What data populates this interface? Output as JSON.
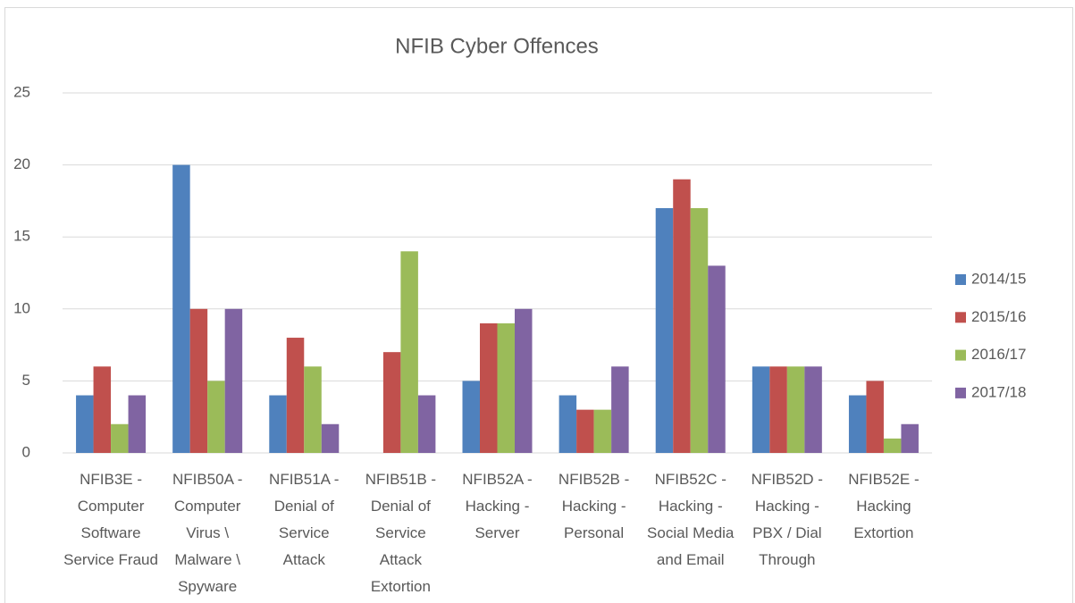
{
  "chart_data": {
    "type": "bar",
    "title": "NFIB Cyber Offences",
    "categories": [
      "NFIB3E - Computer Software Service Fraud",
      "NFIB50A - Computer Virus \\ Malware \\ Spyware",
      "NFIB51A - Denial of Service Attack",
      "NFIB51B - Denial of Service Attack Extortion",
      "NFIB52A - Hacking - Server",
      "NFIB52B - Hacking - Personal",
      "NFIB52C - Hacking - Social Media and Email",
      "NFIB52D - Hacking - PBX / Dial Through",
      "NFIB52E - Hacking Extortion"
    ],
    "series": [
      {
        "name": "2014/15",
        "color": "#4f81bd",
        "values": [
          4,
          20,
          4,
          0,
          5,
          4,
          17,
          6,
          4
        ]
      },
      {
        "name": "2015/16",
        "color": "#c0504d",
        "values": [
          6,
          10,
          8,
          7,
          9,
          3,
          19,
          6,
          5
        ]
      },
      {
        "name": "2016/17",
        "color": "#9bbb59",
        "values": [
          2,
          5,
          6,
          14,
          9,
          3,
          17,
          6,
          1
        ]
      },
      {
        "name": "2017/18",
        "color": "#8064a2",
        "values": [
          4,
          10,
          2,
          4,
          10,
          6,
          13,
          6,
          2
        ]
      }
    ],
    "ylim": [
      0,
      25
    ],
    "yticks": [
      0,
      5,
      10,
      15,
      20,
      25
    ],
    "grid": true,
    "legend": "right"
  }
}
